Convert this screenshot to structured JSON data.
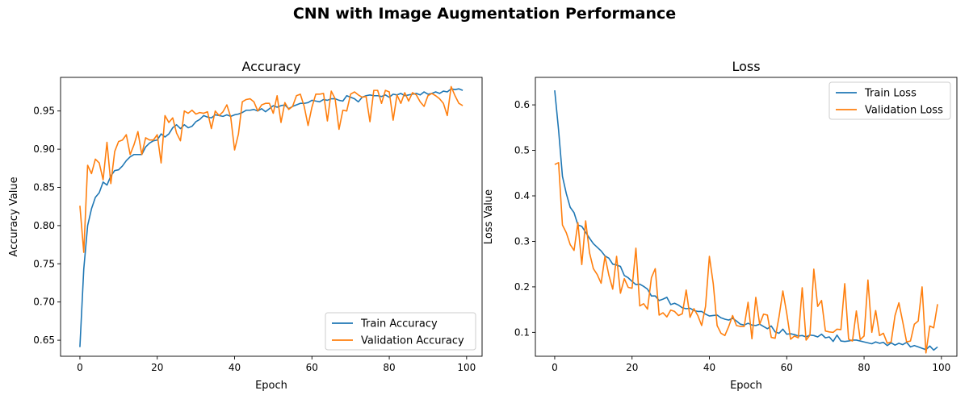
{
  "figure": {
    "title": "CNN with Image Augmentation Performance"
  },
  "colors": {
    "train": "#1f77b4",
    "validation": "#ff7f0e"
  },
  "chart_data": [
    {
      "type": "line",
      "title": "Accuracy",
      "xlabel": "Epoch",
      "ylabel": "Accuracy Value",
      "xlim": [
        -5,
        104
      ],
      "ylim": [
        0.629,
        0.994
      ],
      "xticks": [
        0,
        20,
        40,
        60,
        80,
        100
      ],
      "yticks": [
        0.65,
        0.7,
        0.75,
        0.8,
        0.85,
        0.9,
        0.95
      ],
      "ytick_labels": [
        "0.65",
        "0.70",
        "0.75",
        "0.80",
        "0.85",
        "0.90",
        "0.95"
      ],
      "legend": "lower-right",
      "grid": false,
      "x": [
        0,
        1,
        2,
        3,
        4,
        5,
        6,
        7,
        8,
        9,
        10,
        11,
        12,
        13,
        14,
        15,
        16,
        17,
        18,
        19,
        20,
        21,
        22,
        23,
        24,
        25,
        26,
        27,
        28,
        29,
        30,
        31,
        32,
        33,
        34,
        35,
        36,
        37,
        38,
        39,
        40,
        41,
        42,
        43,
        44,
        45,
        46,
        47,
        48,
        49,
        50,
        51,
        52,
        53,
        54,
        55,
        56,
        57,
        58,
        59,
        60,
        61,
        62,
        63,
        64,
        65,
        66,
        67,
        68,
        69,
        70,
        71,
        72,
        73,
        74,
        75,
        76,
        77,
        78,
        79,
        80,
        81,
        82,
        83,
        84,
        85,
        86,
        87,
        88,
        89,
        90,
        91,
        92,
        93,
        94,
        95,
        96,
        97,
        98,
        99
      ],
      "series": [
        {
          "name": "Train Accuracy",
          "color_key": "train",
          "values": [
            0.641,
            0.743,
            0.8,
            0.822,
            0.837,
            0.843,
            0.857,
            0.853,
            0.865,
            0.872,
            0.873,
            0.878,
            0.885,
            0.89,
            0.893,
            0.893,
            0.893,
            0.903,
            0.908,
            0.911,
            0.912,
            0.92,
            0.916,
            0.92,
            0.928,
            0.932,
            0.927,
            0.932,
            0.928,
            0.93,
            0.936,
            0.939,
            0.944,
            0.942,
            0.941,
            0.945,
            0.944,
            0.943,
            0.945,
            0.943,
            0.945,
            0.946,
            0.948,
            0.951,
            0.951,
            0.952,
            0.95,
            0.953,
            0.949,
            0.953,
            0.957,
            0.955,
            0.957,
            0.958,
            0.953,
            0.956,
            0.958,
            0.96,
            0.96,
            0.961,
            0.964,
            0.963,
            0.962,
            0.965,
            0.964,
            0.966,
            0.966,
            0.964,
            0.963,
            0.97,
            0.968,
            0.966,
            0.962,
            0.968,
            0.97,
            0.971,
            0.97,
            0.97,
            0.969,
            0.971,
            0.968,
            0.972,
            0.971,
            0.973,
            0.97,
            0.971,
            0.972,
            0.973,
            0.971,
            0.975,
            0.972,
            0.973,
            0.975,
            0.973,
            0.976,
            0.975,
            0.979,
            0.978,
            0.979,
            0.977
          ]
        },
        {
          "name": "Validation Accuracy",
          "color_key": "validation",
          "values": [
            0.826,
            0.765,
            0.879,
            0.868,
            0.887,
            0.882,
            0.86,
            0.909,
            0.855,
            0.897,
            0.91,
            0.912,
            0.919,
            0.893,
            0.906,
            0.923,
            0.893,
            0.915,
            0.912,
            0.912,
            0.919,
            0.882,
            0.944,
            0.935,
            0.941,
            0.921,
            0.911,
            0.95,
            0.947,
            0.951,
            0.946,
            0.948,
            0.947,
            0.949,
            0.927,
            0.95,
            0.944,
            0.949,
            0.958,
            0.942,
            0.899,
            0.92,
            0.962,
            0.965,
            0.966,
            0.962,
            0.95,
            0.958,
            0.96,
            0.96,
            0.947,
            0.97,
            0.935,
            0.961,
            0.952,
            0.956,
            0.97,
            0.972,
            0.956,
            0.931,
            0.955,
            0.972,
            0.972,
            0.973,
            0.937,
            0.976,
            0.966,
            0.926,
            0.951,
            0.95,
            0.972,
            0.975,
            0.971,
            0.968,
            0.969,
            0.936,
            0.977,
            0.977,
            0.96,
            0.977,
            0.975,
            0.938,
            0.971,
            0.96,
            0.974,
            0.963,
            0.974,
            0.971,
            0.962,
            0.956,
            0.97,
            0.973,
            0.97,
            0.966,
            0.96,
            0.944,
            0.982,
            0.97,
            0.96,
            0.957
          ]
        }
      ]
    },
    {
      "type": "line",
      "title": "Loss",
      "xlabel": "Epoch",
      "ylabel": "Loss Value",
      "xlim": [
        -5,
        104
      ],
      "ylim": [
        0.0475,
        0.6604
      ],
      "xticks": [
        0,
        20,
        40,
        60,
        80,
        100
      ],
      "yticks": [
        0.1,
        0.2,
        0.3,
        0.4,
        0.5,
        0.6
      ],
      "ytick_labels": [
        "0.1",
        "0.2",
        "0.3",
        "0.4",
        "0.5",
        "0.6"
      ],
      "legend": "top-right",
      "grid": false,
      "x": [
        0,
        1,
        2,
        3,
        4,
        5,
        6,
        7,
        8,
        9,
        10,
        11,
        12,
        13,
        14,
        15,
        16,
        17,
        18,
        19,
        20,
        21,
        22,
        23,
        24,
        25,
        26,
        27,
        28,
        29,
        30,
        31,
        32,
        33,
        34,
        35,
        36,
        37,
        38,
        39,
        40,
        41,
        42,
        43,
        44,
        45,
        46,
        47,
        48,
        49,
        50,
        51,
        52,
        53,
        54,
        55,
        56,
        57,
        58,
        59,
        60,
        61,
        62,
        63,
        64,
        65,
        66,
        67,
        68,
        69,
        70,
        71,
        72,
        73,
        74,
        75,
        76,
        77,
        78,
        79,
        80,
        81,
        82,
        83,
        84,
        85,
        86,
        87,
        88,
        89,
        90,
        91,
        92,
        93,
        94,
        95,
        96,
        97,
        98,
        99
      ],
      "series": [
        {
          "name": "Train Loss",
          "color_key": "train",
          "values": [
            0.632,
            0.545,
            0.443,
            0.405,
            0.375,
            0.363,
            0.336,
            0.333,
            0.32,
            0.307,
            0.295,
            0.287,
            0.279,
            0.268,
            0.263,
            0.25,
            0.248,
            0.245,
            0.225,
            0.22,
            0.212,
            0.205,
            0.206,
            0.201,
            0.195,
            0.18,
            0.18,
            0.17,
            0.173,
            0.177,
            0.161,
            0.164,
            0.16,
            0.154,
            0.152,
            0.153,
            0.148,
            0.146,
            0.146,
            0.14,
            0.136,
            0.137,
            0.138,
            0.132,
            0.129,
            0.127,
            0.131,
            0.125,
            0.118,
            0.116,
            0.12,
            0.116,
            0.115,
            0.118,
            0.113,
            0.108,
            0.114,
            0.101,
            0.098,
            0.107,
            0.096,
            0.097,
            0.095,
            0.092,
            0.093,
            0.09,
            0.094,
            0.093,
            0.09,
            0.096,
            0.088,
            0.09,
            0.08,
            0.094,
            0.081,
            0.08,
            0.081,
            0.083,
            0.083,
            0.081,
            0.079,
            0.077,
            0.075,
            0.079,
            0.076,
            0.078,
            0.071,
            0.077,
            0.072,
            0.076,
            0.073,
            0.078,
            0.068,
            0.071,
            0.068,
            0.065,
            0.062,
            0.07,
            0.061,
            0.068
          ]
        },
        {
          "name": "Validation Loss",
          "color_key": "validation",
          "values": [
            0.469,
            0.473,
            0.336,
            0.319,
            0.293,
            0.28,
            0.341,
            0.249,
            0.345,
            0.275,
            0.24,
            0.227,
            0.208,
            0.267,
            0.226,
            0.195,
            0.267,
            0.186,
            0.218,
            0.199,
            0.197,
            0.285,
            0.158,
            0.163,
            0.151,
            0.22,
            0.24,
            0.138,
            0.143,
            0.134,
            0.149,
            0.146,
            0.137,
            0.141,
            0.193,
            0.133,
            0.152,
            0.137,
            0.115,
            0.157,
            0.267,
            0.207,
            0.115,
            0.098,
            0.093,
            0.113,
            0.137,
            0.115,
            0.113,
            0.113,
            0.166,
            0.086,
            0.177,
            0.118,
            0.14,
            0.138,
            0.089,
            0.087,
            0.134,
            0.191,
            0.142,
            0.085,
            0.092,
            0.088,
            0.198,
            0.083,
            0.094,
            0.239,
            0.157,
            0.17,
            0.103,
            0.101,
            0.1,
            0.107,
            0.106,
            0.207,
            0.085,
            0.081,
            0.147,
            0.084,
            0.092,
            0.215,
            0.1,
            0.148,
            0.093,
            0.098,
            0.076,
            0.079,
            0.137,
            0.165,
            0.123,
            0.079,
            0.081,
            0.118,
            0.125,
            0.2,
            0.055,
            0.114,
            0.11,
            0.162
          ]
        }
      ]
    }
  ]
}
